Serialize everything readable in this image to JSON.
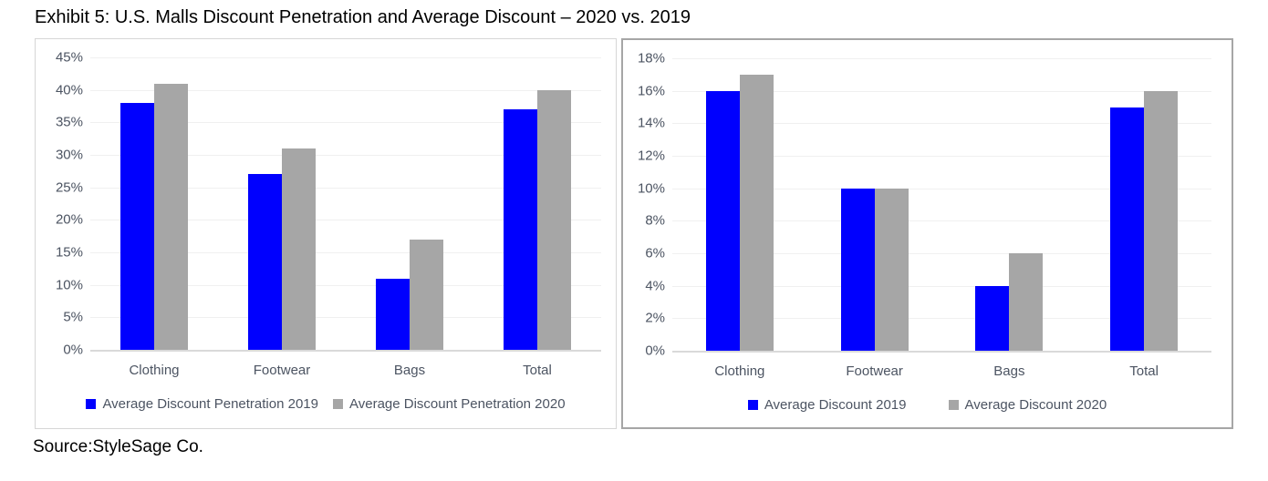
{
  "title": "Exhibit 5: U.S. Malls Discount Penetration and Average Discount – 2020 vs. 2019",
  "source": "Source:StyleSage Co.",
  "colors": {
    "series_2019_blue": "#0000fe",
    "series_2020_gray": "#a6a6a6",
    "axis_text": "#4c5462",
    "gridline": "#f0f0f0",
    "axis_line": "#d9d9d9",
    "left_panel_border": "#d6d6d6",
    "right_panel_border": "#a6a6a6"
  },
  "chart_data": [
    {
      "type": "bar",
      "title": "",
      "categories": [
        "Clothing",
        "Footwear",
        "Bags",
        "Total"
      ],
      "series": [
        {
          "name": "Average Discount Penetration 2019",
          "color": "#0000fe",
          "values": [
            38,
            27,
            11,
            37
          ]
        },
        {
          "name": "Average Discount Penetration 2020",
          "color": "#a6a6a6",
          "values": [
            41,
            31,
            17,
            40
          ]
        }
      ],
      "xlabel": "",
      "ylabel": "",
      "ylim": [
        0,
        45
      ],
      "ytick_step": 5,
      "yticks": [
        "0%",
        "5%",
        "10%",
        "15%",
        "20%",
        "25%",
        "30%",
        "35%",
        "40%",
        "45%"
      ],
      "grid": true,
      "legend_position": "bottom"
    },
    {
      "type": "bar",
      "title": "",
      "categories": [
        "Clothing",
        "Footwear",
        "Bags",
        "Total"
      ],
      "series": [
        {
          "name": "Average Discount 2019",
          "color": "#0000fe",
          "values": [
            16,
            10,
            4,
            15
          ]
        },
        {
          "name": "Average Discount 2020",
          "color": "#a6a6a6",
          "values": [
            17,
            10,
            6,
            16
          ]
        }
      ],
      "xlabel": "",
      "ylabel": "",
      "ylim": [
        0,
        18
      ],
      "ytick_step": 2,
      "yticks": [
        "0%",
        "2%",
        "4%",
        "6%",
        "8%",
        "10%",
        "12%",
        "14%",
        "16%",
        "18%"
      ],
      "grid": true,
      "legend_position": "bottom"
    }
  ]
}
